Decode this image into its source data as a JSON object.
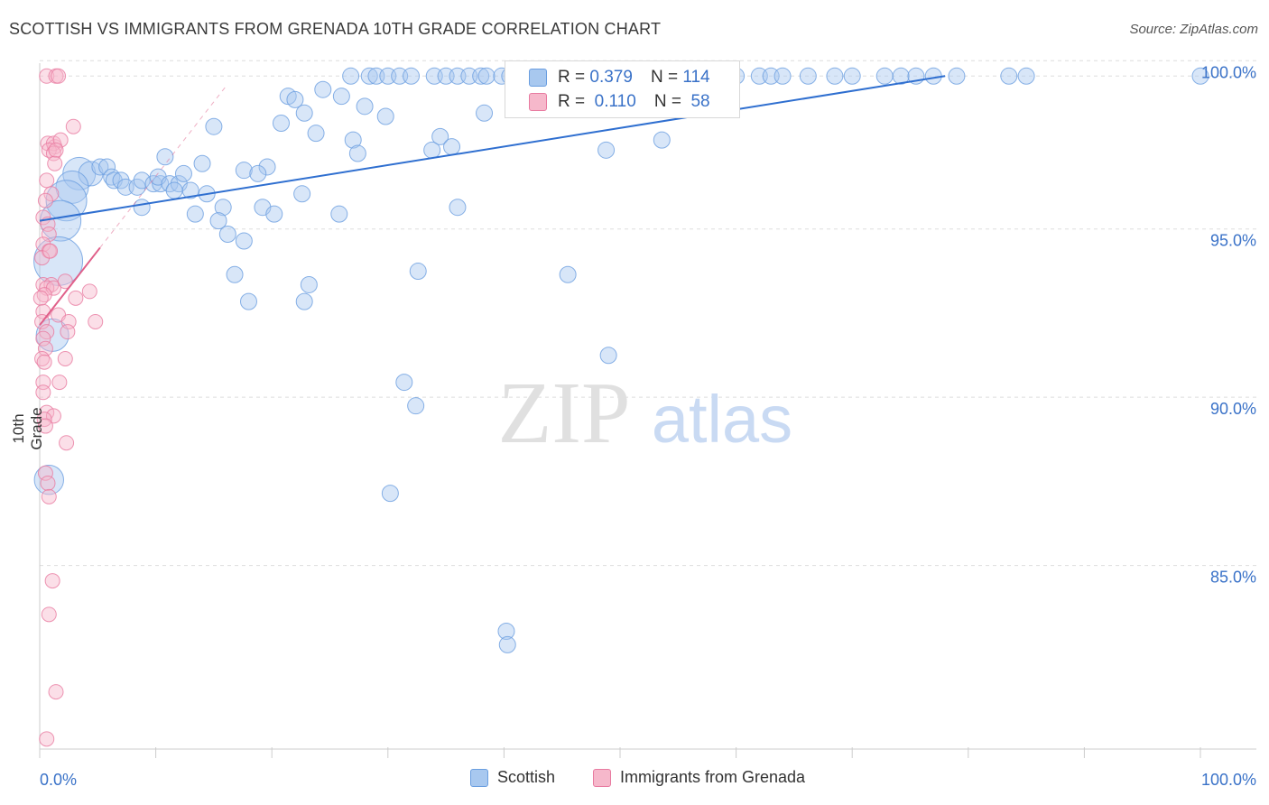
{
  "title": "SCOTTISH VS IMMIGRANTS FROM GRENADA 10TH GRADE CORRELATION CHART",
  "source": "Source: ZipAtlas.com",
  "watermark": {
    "zip": "ZIP",
    "atlas": "atlas"
  },
  "legend": {
    "series1": {
      "r_label": "R =",
      "r_value": "0.379",
      "n_label": "N =",
      "n_value": "114"
    },
    "series2": {
      "r_label": "R =",
      "r_value": "0.110",
      "n_label": "N =",
      "n_value": "58"
    }
  },
  "colors": {
    "blue_fill": "#a8c8ef",
    "blue_stroke": "#6a9ee0",
    "blue_line": "#2f6fd0",
    "pink_fill": "#f6b8cb",
    "pink_stroke": "#e87aa0",
    "pink_line": "#e0608a",
    "grid": "#dddddd",
    "axis_text": "#3a72c8"
  },
  "chart_data": {
    "type": "scatter",
    "title": "SCOTTISH VS IMMIGRANTS FROM GRENADA 10TH GRADE CORRELATION CHART",
    "xlabel": "",
    "ylabel": "10th Grade",
    "xlim": [
      0,
      100
    ],
    "ylim": [
      80.0,
      101.0
    ],
    "x_tick_labels": [
      "0.0%",
      "100.0%"
    ],
    "y_ticks": [
      85.0,
      90.0,
      95.0,
      100.0
    ],
    "y_tick_labels": [
      "85.0%",
      "90.0%",
      "95.0%",
      "100.0%"
    ],
    "grid": true,
    "series": [
      {
        "name": "Scottish",
        "r": 0.379,
        "n": 114,
        "trend": {
          "x": [
            0.0,
            78.0
          ],
          "y": [
            95.7,
            100.0
          ]
        },
        "points": [
          {
            "x": 26.8,
            "y": 100.0,
            "s": 1
          },
          {
            "x": 28.4,
            "y": 100.0,
            "s": 1
          },
          {
            "x": 29.0,
            "y": 100.0,
            "s": 1
          },
          {
            "x": 30.0,
            "y": 100.0,
            "s": 1
          },
          {
            "x": 31.0,
            "y": 100.0,
            "s": 1
          },
          {
            "x": 32.0,
            "y": 100.0,
            "s": 1
          },
          {
            "x": 34.0,
            "y": 100.0,
            "s": 1
          },
          {
            "x": 35.0,
            "y": 100.0,
            "s": 1
          },
          {
            "x": 36.0,
            "y": 100.0,
            "s": 1
          },
          {
            "x": 37.0,
            "y": 100.0,
            "s": 1
          },
          {
            "x": 38.0,
            "y": 100.0,
            "s": 1
          },
          {
            "x": 38.5,
            "y": 100.0,
            "s": 1
          },
          {
            "x": 39.8,
            "y": 100.0,
            "s": 1
          },
          {
            "x": 40.5,
            "y": 100.0,
            "s": 1
          },
          {
            "x": 41.5,
            "y": 100.0,
            "s": 1
          },
          {
            "x": 42.0,
            "y": 100.0,
            "s": 1
          },
          {
            "x": 43.0,
            "y": 100.0,
            "s": 1
          },
          {
            "x": 44.0,
            "y": 100.0,
            "s": 1
          },
          {
            "x": 46.0,
            "y": 100.0,
            "s": 1
          },
          {
            "x": 48.0,
            "y": 100.0,
            "s": 1
          },
          {
            "x": 50.0,
            "y": 100.0,
            "s": 1
          },
          {
            "x": 52.0,
            "y": 100.0,
            "s": 1
          },
          {
            "x": 55.0,
            "y": 100.0,
            "s": 1
          },
          {
            "x": 57.0,
            "y": 100.0,
            "s": 1
          },
          {
            "x": 58.5,
            "y": 100.0,
            "s": 1
          },
          {
            "x": 60.0,
            "y": 100.0,
            "s": 1
          },
          {
            "x": 62.0,
            "y": 100.0,
            "s": 1
          },
          {
            "x": 63.0,
            "y": 100.0,
            "s": 1
          },
          {
            "x": 64.0,
            "y": 100.0,
            "s": 1
          },
          {
            "x": 66.2,
            "y": 100.0,
            "s": 1
          },
          {
            "x": 68.5,
            "y": 100.0,
            "s": 1
          },
          {
            "x": 70.0,
            "y": 100.0,
            "s": 1
          },
          {
            "x": 72.8,
            "y": 100.0,
            "s": 1
          },
          {
            "x": 74.2,
            "y": 100.0,
            "s": 1
          },
          {
            "x": 75.5,
            "y": 100.0,
            "s": 1
          },
          {
            "x": 77.0,
            "y": 100.0,
            "s": 1
          },
          {
            "x": 79.0,
            "y": 100.0,
            "s": 1
          },
          {
            "x": 83.5,
            "y": 100.0,
            "s": 1
          },
          {
            "x": 85.0,
            "y": 100.0,
            "s": 1
          },
          {
            "x": 100.0,
            "y": 100.0,
            "s": 1
          },
          {
            "x": 21.4,
            "y": 99.4,
            "s": 1
          },
          {
            "x": 22.0,
            "y": 99.3,
            "s": 1
          },
          {
            "x": 24.4,
            "y": 99.6,
            "s": 1
          },
          {
            "x": 26.0,
            "y": 99.4,
            "s": 1
          },
          {
            "x": 28.0,
            "y": 99.1,
            "s": 1
          },
          {
            "x": 29.8,
            "y": 98.8,
            "s": 1
          },
          {
            "x": 22.8,
            "y": 98.9,
            "s": 1
          },
          {
            "x": 20.8,
            "y": 98.6,
            "s": 1
          },
          {
            "x": 38.3,
            "y": 98.9,
            "s": 1
          },
          {
            "x": 15.0,
            "y": 98.5,
            "s": 1
          },
          {
            "x": 23.8,
            "y": 98.3,
            "s": 1
          },
          {
            "x": 27.0,
            "y": 98.1,
            "s": 1
          },
          {
            "x": 34.5,
            "y": 98.2,
            "s": 1
          },
          {
            "x": 33.8,
            "y": 97.8,
            "s": 1
          },
          {
            "x": 27.4,
            "y": 97.7,
            "s": 1
          },
          {
            "x": 35.5,
            "y": 97.9,
            "s": 1
          },
          {
            "x": 48.8,
            "y": 97.8,
            "s": 1
          },
          {
            "x": 53.6,
            "y": 98.1,
            "s": 1
          },
          {
            "x": 10.8,
            "y": 97.6,
            "s": 1
          },
          {
            "x": 14.0,
            "y": 97.4,
            "s": 1
          },
          {
            "x": 17.6,
            "y": 97.2,
            "s": 1
          },
          {
            "x": 19.6,
            "y": 97.3,
            "s": 1
          },
          {
            "x": 18.8,
            "y": 97.1,
            "s": 1
          },
          {
            "x": 3.4,
            "y": 97.1,
            "s": 2
          },
          {
            "x": 4.4,
            "y": 97.1,
            "s": 1.5
          },
          {
            "x": 5.2,
            "y": 97.3,
            "s": 1
          },
          {
            "x": 5.8,
            "y": 97.3,
            "s": 1
          },
          {
            "x": 6.2,
            "y": 97.0,
            "s": 1
          },
          {
            "x": 6.4,
            "y": 96.9,
            "s": 1
          },
          {
            "x": 7.0,
            "y": 96.9,
            "s": 1
          },
          {
            "x": 7.4,
            "y": 96.7,
            "s": 1
          },
          {
            "x": 8.4,
            "y": 96.7,
            "s": 1
          },
          {
            "x": 8.8,
            "y": 96.9,
            "s": 1
          },
          {
            "x": 9.8,
            "y": 96.8,
            "s": 1
          },
          {
            "x": 10.4,
            "y": 96.8,
            "s": 1
          },
          {
            "x": 10.2,
            "y": 97.0,
            "s": 1
          },
          {
            "x": 11.2,
            "y": 96.8,
            "s": 1
          },
          {
            "x": 12.0,
            "y": 96.8,
            "s": 1
          },
          {
            "x": 12.4,
            "y": 97.1,
            "s": 1
          },
          {
            "x": 11.6,
            "y": 96.6,
            "s": 1
          },
          {
            "x": 13.0,
            "y": 96.6,
            "s": 1
          },
          {
            "x": 14.4,
            "y": 96.5,
            "s": 1
          },
          {
            "x": 2.8,
            "y": 96.7,
            "s": 2
          },
          {
            "x": 2.3,
            "y": 96.3,
            "s": 2.5
          },
          {
            "x": 8.8,
            "y": 96.1,
            "s": 1
          },
          {
            "x": 15.8,
            "y": 96.1,
            "s": 1
          },
          {
            "x": 19.2,
            "y": 96.1,
            "s": 1
          },
          {
            "x": 20.2,
            "y": 95.9,
            "s": 1
          },
          {
            "x": 25.8,
            "y": 95.9,
            "s": 1
          },
          {
            "x": 13.4,
            "y": 95.9,
            "s": 1
          },
          {
            "x": 15.4,
            "y": 95.7,
            "s": 1
          },
          {
            "x": 22.6,
            "y": 96.5,
            "s": 1
          },
          {
            "x": 36.0,
            "y": 96.1,
            "s": 1
          },
          {
            "x": 1.8,
            "y": 95.7,
            "s": 2.5
          },
          {
            "x": 1.6,
            "y": 94.5,
            "s": 3
          },
          {
            "x": 16.2,
            "y": 95.3,
            "s": 1
          },
          {
            "x": 17.6,
            "y": 95.1,
            "s": 1
          },
          {
            "x": 16.8,
            "y": 94.1,
            "s": 1
          },
          {
            "x": 32.6,
            "y": 94.2,
            "s": 1
          },
          {
            "x": 45.5,
            "y": 94.1,
            "s": 1
          },
          {
            "x": 23.2,
            "y": 93.8,
            "s": 1
          },
          {
            "x": 18.0,
            "y": 93.3,
            "s": 1
          },
          {
            "x": 22.8,
            "y": 93.3,
            "s": 1
          },
          {
            "x": 1.1,
            "y": 92.3,
            "s": 2
          },
          {
            "x": 49.0,
            "y": 91.7,
            "s": 1
          },
          {
            "x": 31.4,
            "y": 90.9,
            "s": 1
          },
          {
            "x": 32.4,
            "y": 90.2,
            "s": 1
          },
          {
            "x": 0.8,
            "y": 88.0,
            "s": 1.8
          },
          {
            "x": 30.2,
            "y": 87.6,
            "s": 1
          },
          {
            "x": 40.2,
            "y": 83.5,
            "s": 1
          },
          {
            "x": 40.3,
            "y": 83.1,
            "s": 1
          }
        ]
      },
      {
        "name": "Immigrants from Grenada",
        "r": 0.11,
        "n": 58,
        "trend": {
          "x": [
            0.0,
            5.2
          ],
          "y": [
            92.6,
            94.9
          ]
        },
        "points": [
          {
            "x": 0.6,
            "y": 100.0
          },
          {
            "x": 1.4,
            "y": 100.0
          },
          {
            "x": 1.6,
            "y": 100.0
          },
          {
            "x": 2.9,
            "y": 98.5
          },
          {
            "x": 0.7,
            "y": 98.0
          },
          {
            "x": 1.3,
            "y": 97.9
          },
          {
            "x": 1.2,
            "y": 98.0
          },
          {
            "x": 1.8,
            "y": 98.1
          },
          {
            "x": 0.8,
            "y": 97.8
          },
          {
            "x": 1.2,
            "y": 97.7
          },
          {
            "x": 1.4,
            "y": 97.8
          },
          {
            "x": 1.3,
            "y": 97.4
          },
          {
            "x": 0.6,
            "y": 96.9
          },
          {
            "x": 1.0,
            "y": 96.5
          },
          {
            "x": 0.5,
            "y": 96.3
          },
          {
            "x": 0.3,
            "y": 95.8
          },
          {
            "x": 0.7,
            "y": 95.6
          },
          {
            "x": 0.8,
            "y": 95.3
          },
          {
            "x": 0.3,
            "y": 95.0
          },
          {
            "x": 0.8,
            "y": 94.8
          },
          {
            "x": 0.2,
            "y": 94.6
          },
          {
            "x": 0.9,
            "y": 94.8
          },
          {
            "x": 0.3,
            "y": 93.8
          },
          {
            "x": 1.0,
            "y": 93.8
          },
          {
            "x": 0.6,
            "y": 93.7
          },
          {
            "x": 1.2,
            "y": 93.7
          },
          {
            "x": 0.4,
            "y": 93.5
          },
          {
            "x": 0.1,
            "y": 93.4
          },
          {
            "x": 2.2,
            "y": 93.9
          },
          {
            "x": 3.1,
            "y": 93.4
          },
          {
            "x": 4.3,
            "y": 93.6
          },
          {
            "x": 0.3,
            "y": 93.0
          },
          {
            "x": 1.6,
            "y": 92.9
          },
          {
            "x": 0.2,
            "y": 92.7
          },
          {
            "x": 2.5,
            "y": 92.7
          },
          {
            "x": 4.8,
            "y": 92.7
          },
          {
            "x": 0.6,
            "y": 92.4
          },
          {
            "x": 2.4,
            "y": 92.4
          },
          {
            "x": 0.3,
            "y": 92.2
          },
          {
            "x": 0.5,
            "y": 91.9
          },
          {
            "x": 0.2,
            "y": 91.6
          },
          {
            "x": 2.2,
            "y": 91.6
          },
          {
            "x": 0.4,
            "y": 91.5
          },
          {
            "x": 1.7,
            "y": 90.9
          },
          {
            "x": 0.3,
            "y": 90.9
          },
          {
            "x": 0.3,
            "y": 90.6
          },
          {
            "x": 0.6,
            "y": 90.0
          },
          {
            "x": 1.2,
            "y": 89.9
          },
          {
            "x": 0.4,
            "y": 89.8
          },
          {
            "x": 0.5,
            "y": 89.6
          },
          {
            "x": 2.3,
            "y": 89.1
          },
          {
            "x": 0.5,
            "y": 88.2
          },
          {
            "x": 0.7,
            "y": 87.9
          },
          {
            "x": 0.8,
            "y": 87.5
          },
          {
            "x": 1.1,
            "y": 85.0
          },
          {
            "x": 0.8,
            "y": 84.0
          },
          {
            "x": 1.4,
            "y": 81.7
          },
          {
            "x": 0.6,
            "y": 80.3
          }
        ]
      }
    ],
    "legend_bottom": [
      "Scottish",
      "Immigrants from Grenada"
    ]
  }
}
